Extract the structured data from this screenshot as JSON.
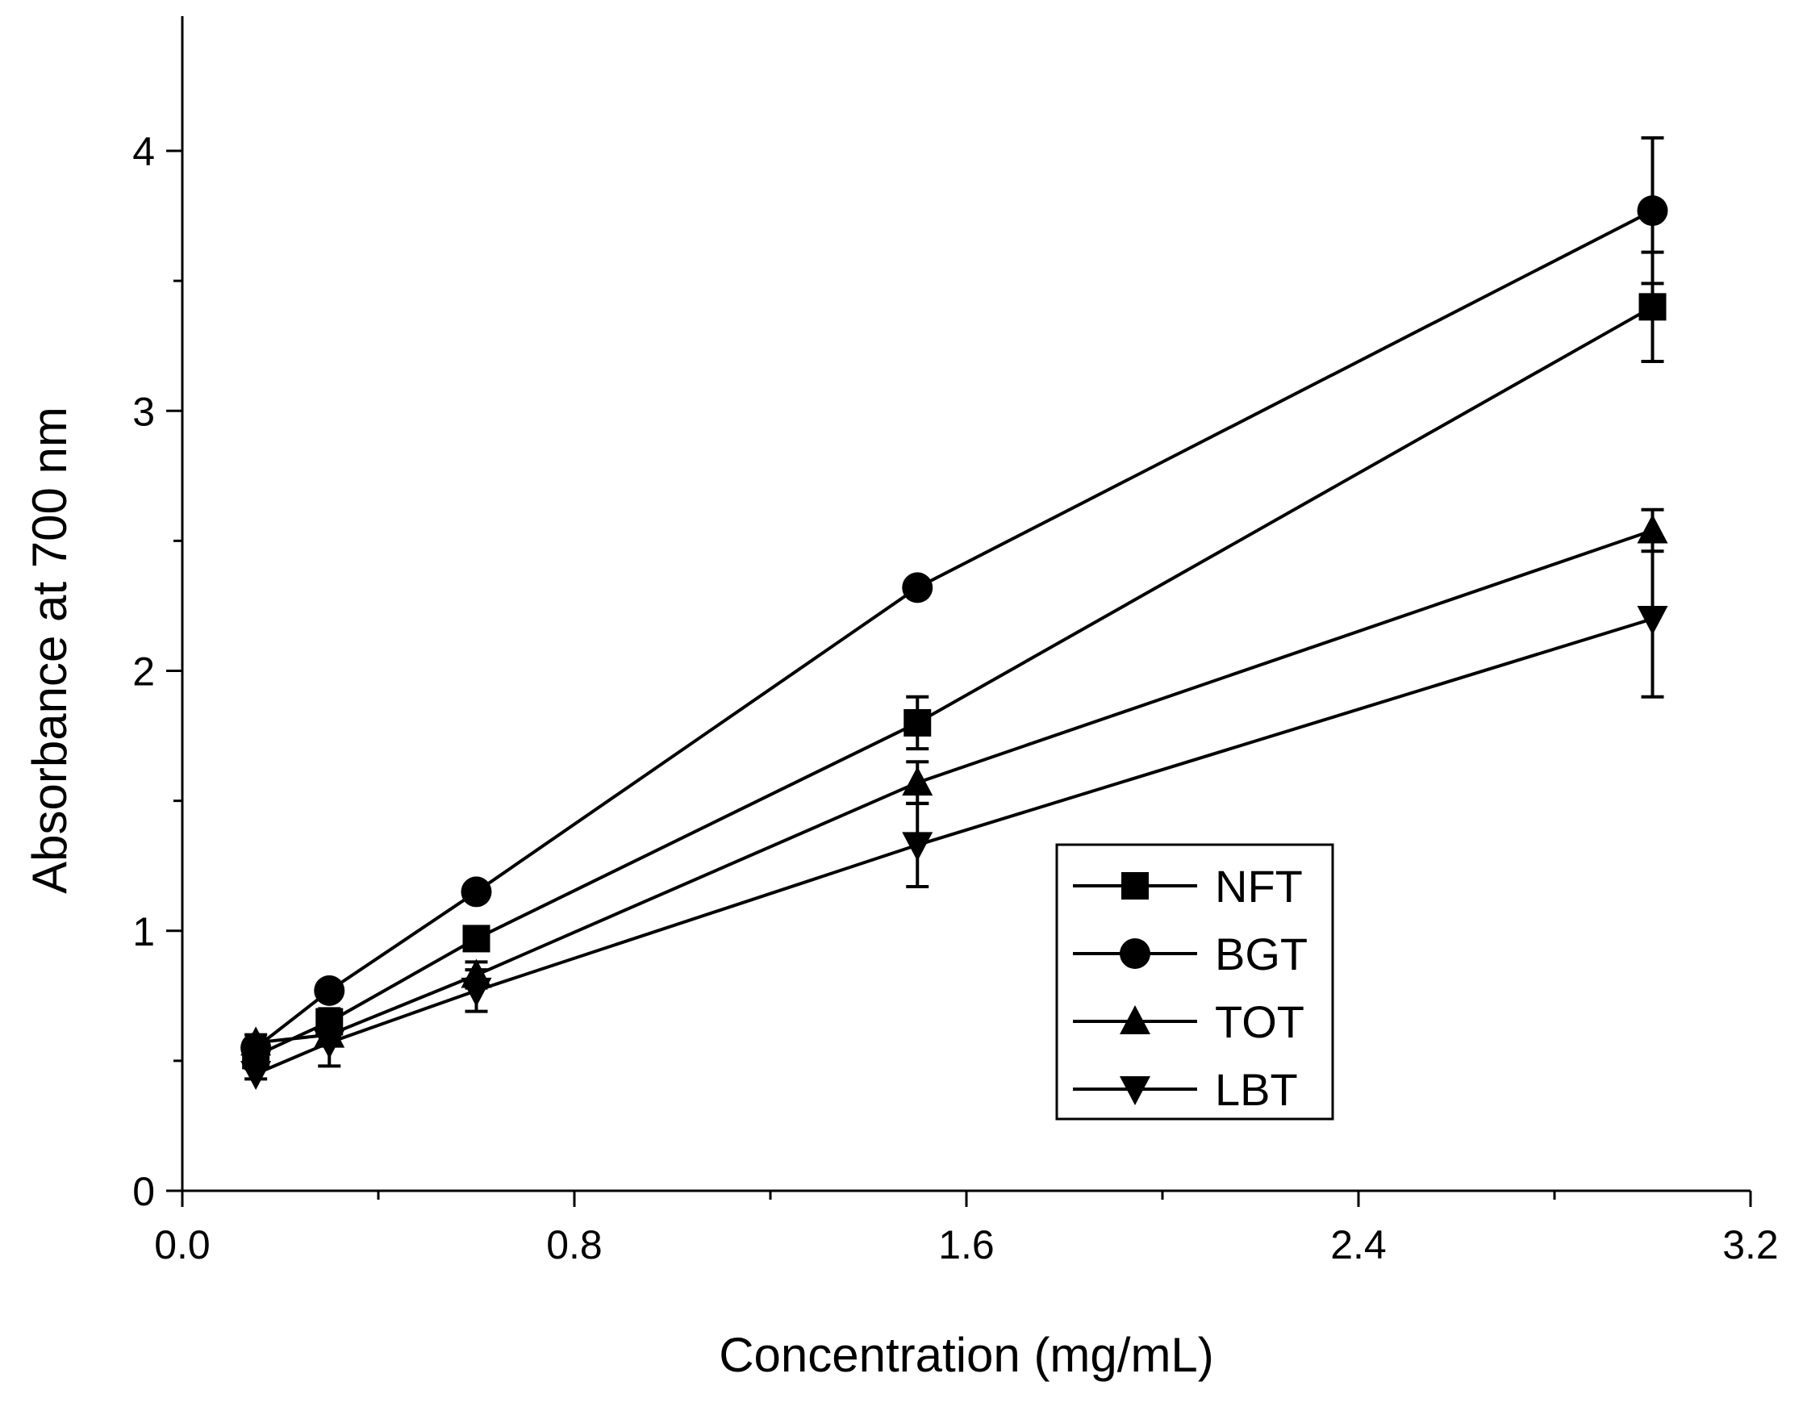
{
  "chart_data": {
    "type": "line",
    "xlabel": "Concentration (mg/mL)",
    "ylabel": "Absorbance at 700 nm",
    "xlim": [
      0.0,
      3.2
    ],
    "ylim": [
      0,
      4.5
    ],
    "x_ticks": [
      0.0,
      0.8,
      1.6,
      2.4,
      3.2
    ],
    "x_tick_labels": [
      "0.0",
      "0.8",
      "1.6",
      "2.4",
      "3.2"
    ],
    "x_minor_ticks": [
      0.4,
      1.2,
      2.0,
      2.8
    ],
    "y_ticks": [
      0,
      1,
      2,
      3,
      4
    ],
    "y_tick_labels": [
      "0",
      "1",
      "2",
      "3",
      "4"
    ],
    "y_minor_ticks": [
      0.5,
      1.5,
      2.5,
      3.5
    ],
    "grid": false,
    "legend_position": "lower-right",
    "x": [
      0.15,
      0.3,
      0.6,
      1.5,
      3.0
    ],
    "series": [
      {
        "name": "NFT",
        "marker": "square",
        "values": [
          0.52,
          0.65,
          0.97,
          1.8,
          3.4
        ],
        "errors": [
          0.03,
          0.05,
          0.04,
          0.1,
          0.21
        ]
      },
      {
        "name": "BGT",
        "marker": "circle",
        "values": [
          0.55,
          0.77,
          1.15,
          2.32,
          3.77
        ],
        "errors": [
          0.03,
          0.03,
          0.02,
          0.03,
          0.28
        ]
      },
      {
        "name": "TOT",
        "marker": "triangle-up",
        "values": [
          0.57,
          0.6,
          0.83,
          1.57,
          2.54
        ],
        "errors": [
          0.03,
          0.04,
          0.05,
          0.08,
          0.08
        ]
      },
      {
        "name": "LBT",
        "marker": "triangle-down",
        "values": [
          0.45,
          0.57,
          0.77,
          1.33,
          2.2
        ],
        "errors": [
          0.02,
          0.09,
          0.08,
          0.16,
          0.3
        ]
      }
    ]
  }
}
